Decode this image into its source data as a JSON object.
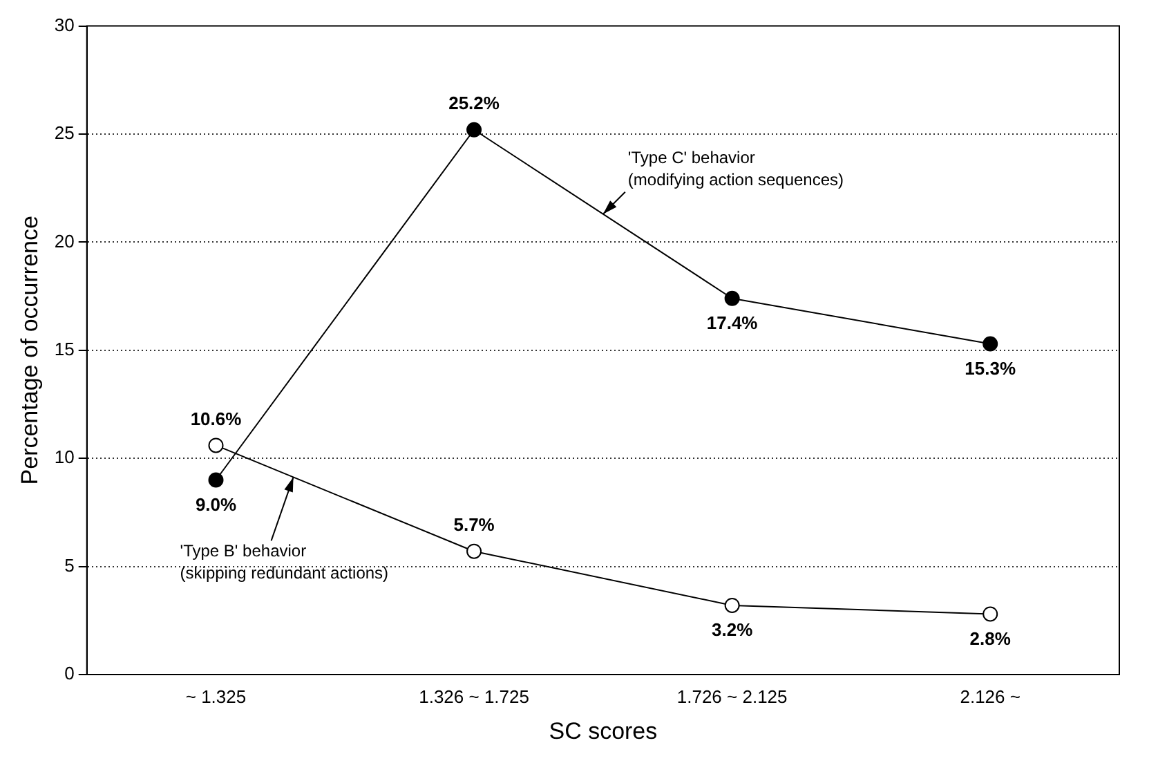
{
  "chart_data": {
    "type": "line",
    "xlabel": "SC scores",
    "ylabel": "Percentage of occurrence",
    "categories": [
      "~ 1.325",
      "1.326 ~ 1.725",
      "1.726 ~ 2.125",
      "2.126 ~"
    ],
    "series": [
      {
        "name": "'Type C' behavior\n(modifying action sequences)",
        "color": "#000000",
        "values": [
          9.0,
          25.2,
          17.4,
          15.3
        ],
        "value_labels": [
          "9.0%",
          "25.2%",
          "17.4%",
          "15.3%"
        ]
      },
      {
        "name": "'Type B' behavior\n(skipping redundant actions)",
        "color": "#000000",
        "values": [
          10.6,
          5.7,
          3.2,
          2.8
        ],
        "value_labels": [
          "10.6%",
          "5.7%",
          "3.2%",
          "2.8%"
        ]
      }
    ],
    "ylim": [
      0,
      30
    ],
    "yticks": [
      0,
      5,
      10,
      15,
      20,
      25,
      30
    ],
    "grid": "y",
    "legend": false,
    "marker": "circle",
    "line_style": "solid"
  }
}
